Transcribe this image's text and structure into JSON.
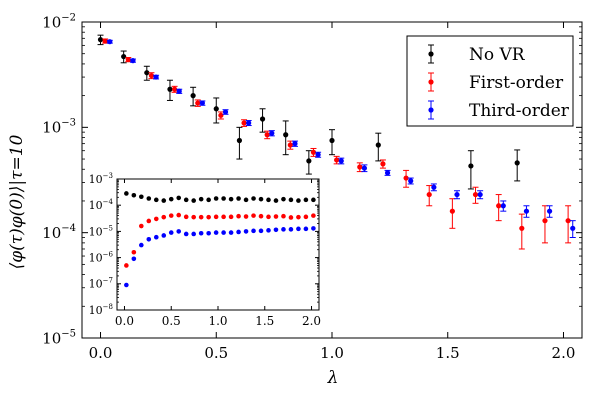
{
  "chart_data": [
    {
      "type": "scatter",
      "role": "main",
      "title": "",
      "xlabel": "λ",
      "ylabel": "⟨φ(τ)φ(0)⟩|τ=10",
      "xlim": [
        -0.08,
        2.08
      ],
      "ylim": [
        1e-05,
        0.01
      ],
      "yscale": "log",
      "xticks": [
        0.0,
        0.5,
        1.0,
        1.5,
        2.0
      ],
      "xtick_labels": [
        "0.0",
        "0.5",
        "1.0",
        "1.5",
        "2.0"
      ],
      "ytick_exponents": [
        -5,
        -4,
        -3,
        -2
      ],
      "ytick_base": "10",
      "legend": {
        "position": "top-right",
        "entries": [
          "No VR",
          "First-order",
          "Third-order"
        ]
      },
      "series": [
        {
          "name": "No VR",
          "color": "#000000",
          "x": [
            0.0,
            0.1,
            0.2,
            0.3,
            0.4,
            0.5,
            0.6,
            0.7,
            0.8,
            0.9,
            1.0,
            1.2,
            1.6,
            1.8
          ],
          "y": [
            0.0068,
            0.0047,
            0.0033,
            0.0023,
            0.002,
            0.0015,
            0.00075,
            0.0012,
            0.00085,
            0.00048,
            0.00075,
            0.00068,
            0.00043,
            0.00046
          ],
          "yerr": [
            0.0007,
            0.0006,
            0.0005,
            0.0005,
            0.0004,
            0.0004,
            0.00025,
            0.0003,
            0.0003,
            0.00012,
            0.0002,
            0.0002,
            0.00017,
            0.00015
          ]
        },
        {
          "name": "First-order",
          "color": "#ff0000",
          "x": [
            0.02,
            0.12,
            0.22,
            0.32,
            0.42,
            0.52,
            0.62,
            0.72,
            0.82,
            0.92,
            1.02,
            1.12,
            1.22,
            1.32,
            1.42,
            1.52,
            1.62,
            1.72,
            1.82,
            1.92,
            2.02
          ],
          "y": [
            0.0066,
            0.0044,
            0.0031,
            0.0023,
            0.0017,
            0.0013,
            0.0011,
            0.00085,
            0.00068,
            0.00058,
            0.00049,
            0.00042,
            0.00045,
            0.00033,
            0.00023,
            0.00016,
            0.00023,
            0.00018,
            0.00011,
            0.00013,
            0.00013
          ],
          "yerr": [
            0.0003,
            0.0002,
            0.0002,
            0.00015,
            0.00012,
            0.0001,
            8e-05,
            7e-05,
            6e-05,
            5e-05,
            4e-05,
            4e-05,
            4e-05,
            6e-05,
            5e-05,
            5e-05,
            4e-05,
            5e-05,
            4e-05,
            5e-05,
            5e-05
          ]
        },
        {
          "name": "Third-order",
          "color": "#0000ff",
          "x": [
            0.04,
            0.14,
            0.24,
            0.34,
            0.44,
            0.54,
            0.64,
            0.74,
            0.84,
            0.94,
            1.04,
            1.14,
            1.24,
            1.34,
            1.44,
            1.54,
            1.64,
            1.74,
            1.84,
            1.94,
            2.04
          ],
          "y": [
            0.0065,
            0.0043,
            0.003,
            0.0022,
            0.0017,
            0.0014,
            0.0011,
            0.00088,
            0.0007,
            0.00055,
            0.00048,
            0.00041,
            0.00037,
            0.00031,
            0.00027,
            0.00023,
            0.00023,
            0.00018,
            0.00016,
            0.00016,
            0.00011
          ],
          "yerr": [
            0.0002,
            0.00015,
            0.00012,
            0.0001,
            8e-05,
            7e-05,
            6e-05,
            5e-05,
            4e-05,
            3e-05,
            3e-05,
            3e-05,
            2e-05,
            2e-05,
            2e-05,
            2e-05,
            2e-05,
            2e-05,
            2e-05,
            2e-05,
            2e-05
          ]
        }
      ]
    },
    {
      "type": "scatter",
      "role": "inset",
      "title": "",
      "xlabel": "",
      "ylabel": "",
      "xlim": [
        -0.08,
        2.08
      ],
      "ylim": [
        1e-08,
        0.001
      ],
      "yscale": "log",
      "xticks": [
        0.0,
        0.5,
        1.0,
        1.5,
        2.0
      ],
      "xtick_labels": [
        "0.0",
        "0.5",
        "1.0",
        "1.5",
        "2.0"
      ],
      "ytick_exponents": [
        -8,
        -7,
        -6,
        -5,
        -4,
        -3
      ],
      "ytick_base": "10",
      "series": [
        {
          "name": "No VR",
          "color": "#000000",
          "x": [
            0.02,
            0.1,
            0.18,
            0.26,
            0.34,
            0.42,
            0.5,
            0.58,
            0.66,
            0.74,
            0.82,
            0.9,
            0.98,
            1.06,
            1.14,
            1.22,
            1.3,
            1.38,
            1.46,
            1.54,
            1.62,
            1.7,
            1.78,
            1.86,
            1.94,
            2.02
          ],
          "y": [
            0.00028,
            0.00024,
            0.00021,
            0.00018,
            0.00016,
            0.00015,
            0.00017,
            0.00019,
            0.00016,
            0.00015,
            0.00017,
            0.00016,
            0.00018,
            0.00018,
            0.00017,
            0.00018,
            0.00016,
            0.00018,
            0.00017,
            0.00016,
            0.00015,
            0.00017,
            0.00016,
            0.00015,
            0.00016,
            0.00016
          ]
        },
        {
          "name": "First-order",
          "color": "#ff0000",
          "x": [
            0.02,
            0.1,
            0.18,
            0.26,
            0.34,
            0.42,
            0.5,
            0.58,
            0.66,
            0.74,
            0.82,
            0.9,
            0.98,
            1.06,
            1.14,
            1.22,
            1.3,
            1.38,
            1.46,
            1.54,
            1.62,
            1.7,
            1.78,
            1.86,
            1.94,
            2.02
          ],
          "y": [
            5e-07,
            1.6e-06,
            1.6e-05,
            2.5e-05,
            3e-05,
            3.5e-05,
            4e-05,
            4.2e-05,
            3.6e-05,
            3.5e-05,
            3.5e-05,
            3.5e-05,
            3.6e-05,
            3.6e-05,
            3.6e-05,
            3.8e-05,
            3.7e-05,
            4e-05,
            3.8e-05,
            3.6e-05,
            3.7e-05,
            3.8e-05,
            3.4e-05,
            3.5e-05,
            3.6e-05,
            4e-05
          ]
        },
        {
          "name": "Third-order",
          "color": "#0000ff",
          "x": [
            0.02,
            0.1,
            0.18,
            0.26,
            0.34,
            0.42,
            0.5,
            0.58,
            0.66,
            0.74,
            0.82,
            0.9,
            0.98,
            1.06,
            1.14,
            1.22,
            1.3,
            1.38,
            1.46,
            1.54,
            1.62,
            1.7,
            1.78,
            1.86,
            1.94,
            2.02
          ],
          "y": [
            9e-08,
            9e-07,
            3e-06,
            5e-06,
            6e-06,
            7e-06,
            9e-06,
            1e-05,
            8e-06,
            8e-06,
            8.5e-06,
            8.5e-06,
            9e-06,
            9e-06,
            9e-06,
            9.5e-06,
            1e-05,
            1.05e-05,
            1.05e-05,
            1.1e-05,
            1.15e-05,
            1.2e-05,
            1.2e-05,
            1.25e-05,
            1.25e-05,
            1.3e-05
          ]
        }
      ]
    }
  ]
}
